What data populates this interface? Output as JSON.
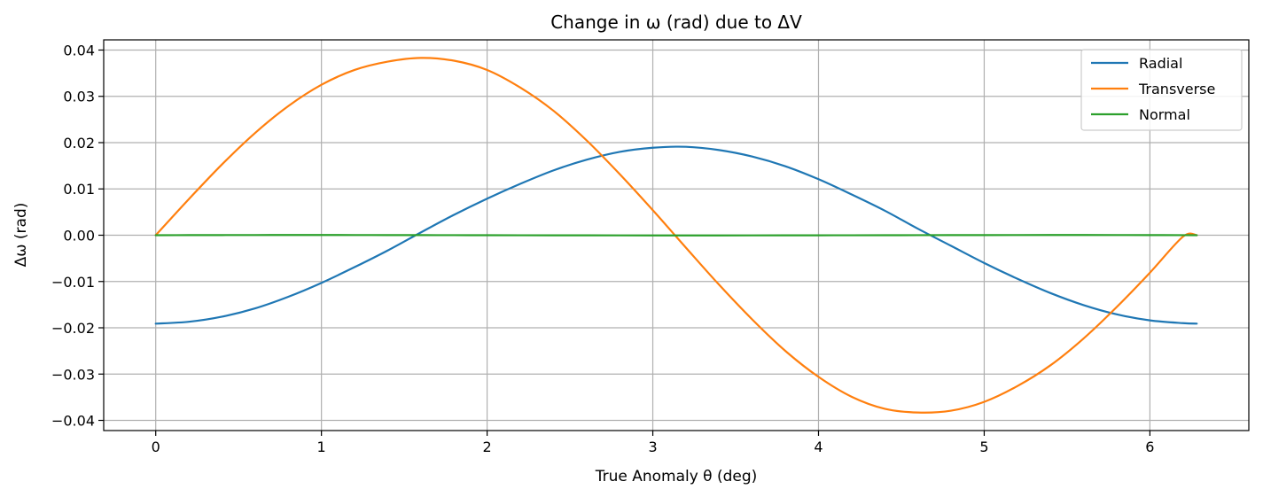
{
  "chart_data": {
    "type": "line",
    "title": "Change in ω (rad) due to ΔV",
    "xlabel": "True Anomaly θ (deg)",
    "ylabel": "Δω (rad)",
    "xlim": [
      -0.314,
      6.597
    ],
    "ylim": [
      -0.0422,
      0.0422
    ],
    "xticks": [
      0,
      1,
      2,
      3,
      4,
      5,
      6
    ],
    "xtick_labels": [
      "0",
      "1",
      "2",
      "3",
      "4",
      "5",
      "6"
    ],
    "yticks": [
      0.04,
      0.03,
      0.02,
      0.01,
      0.0,
      -0.01,
      -0.02,
      -0.03,
      -0.04
    ],
    "ytick_labels": [
      "0.04",
      "0.03",
      "0.02",
      "0.01",
      "0.00",
      "−0.01",
      "−0.02",
      "−0.03",
      "−0.04"
    ],
    "grid": true,
    "legend_position": "top-right",
    "x": [
      0.0,
      0.2,
      0.4,
      0.6,
      0.8,
      1.0,
      1.2,
      1.4,
      1.6,
      1.8,
      2.0,
      2.2,
      2.4,
      2.6,
      2.8,
      3.0,
      3.2,
      3.4,
      3.6,
      3.8,
      4.0,
      4.2,
      4.4,
      4.6,
      4.8,
      5.0,
      5.2,
      5.4,
      5.6,
      5.8,
      6.0,
      6.2,
      6.283
    ],
    "series": [
      {
        "name": "Radial",
        "color": "#1f77b4",
        "values": [
          -0.0191,
          -0.0187,
          -0.0176,
          -0.0158,
          -0.0133,
          -0.0103,
          -0.0069,
          -0.0033,
          0.0006,
          0.0044,
          0.0079,
          0.0111,
          0.014,
          0.0163,
          0.018,
          0.0189,
          0.0191,
          0.0184,
          0.017,
          0.0149,
          0.0121,
          0.0088,
          0.0053,
          0.0014,
          -0.0023,
          -0.006,
          -0.0094,
          -0.0125,
          -0.0151,
          -0.0171,
          -0.0184,
          -0.019,
          -0.0191
        ]
      },
      {
        "name": "Transverse",
        "color": "#ff7f0e",
        "values": [
          0.0,
          0.0078,
          0.0153,
          0.0221,
          0.0279,
          0.0325,
          0.0357,
          0.0375,
          0.0383,
          0.0377,
          0.0357,
          0.0319,
          0.0269,
          0.0205,
          0.0132,
          0.0054,
          -0.0027,
          -0.0107,
          -0.0182,
          -0.025,
          -0.0306,
          -0.0349,
          -0.0375,
          -0.0383,
          -0.0379,
          -0.036,
          -0.0326,
          -0.0281,
          -0.0223,
          -0.0155,
          -0.0081,
          -0.0003,
          0.0
        ]
      },
      {
        "name": "Normal",
        "color": "#2ca02c",
        "values": [
          0.0,
          2e-05,
          3e-05,
          4e-05,
          5e-05,
          5e-05,
          4e-05,
          3e-05,
          2e-05,
          1e-05,
          0.0,
          -1e-05,
          -2e-05,
          -3e-05,
          -4e-05,
          -5e-05,
          -5e-05,
          -5e-05,
          -4e-05,
          -3e-05,
          -2e-05,
          -1e-05,
          0.0,
          1e-05,
          2e-05,
          3e-05,
          4e-05,
          5e-05,
          5e-05,
          4e-05,
          3e-05,
          1e-05,
          0.0
        ]
      }
    ]
  }
}
